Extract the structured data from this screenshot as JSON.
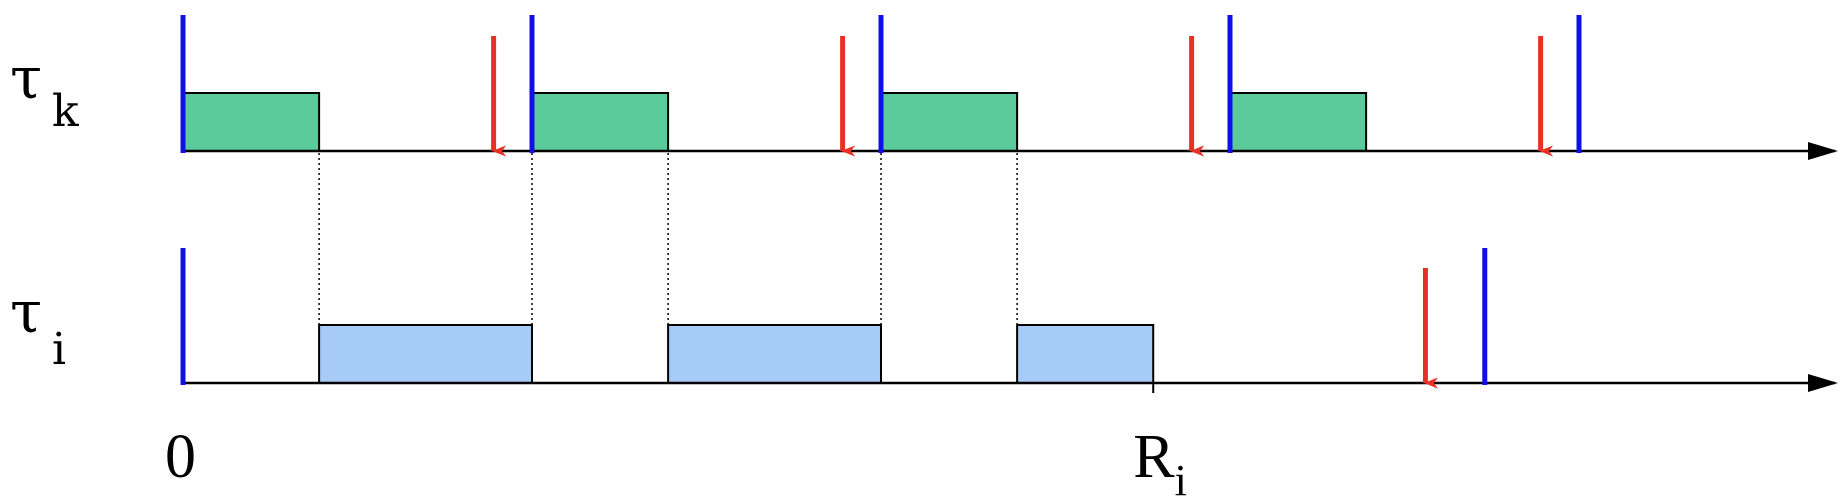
{
  "diagram": {
    "type": "schedule-timeline",
    "colors": {
      "axis": "#000000",
      "release_marker": "#1010e6",
      "deadline_arrow": "#e83025",
      "task_k_fill": "#5ccb9b",
      "task_i_fill": "#a6cbf7",
      "guide_line": "#000000"
    },
    "rows": [
      {
        "id": "tau-k",
        "symbol": "τ",
        "subscript": "k",
        "releases": [
          0,
          1,
          2,
          3,
          4
        ],
        "deadlines": [
          0.89,
          1.89,
          2.89,
          3.89
        ],
        "executions": [
          [
            0,
            0.39
          ],
          [
            1,
            1.39
          ],
          [
            2,
            2.39
          ],
          [
            3,
            3.39
          ]
        ]
      },
      {
        "id": "tau-i",
        "symbol": "τ",
        "subscript": "i",
        "releases": [
          0,
          3.73
        ],
        "deadlines": [
          3.56
        ],
        "executions": [
          [
            0.39,
            1
          ],
          [
            1.39,
            2
          ],
          [
            2.39,
            2.78
          ]
        ]
      }
    ],
    "x_labels": [
      {
        "main": "0",
        "sub": "",
        "x": 0
      },
      {
        "main": "R",
        "sub": "i",
        "x": 2.78
      }
    ]
  }
}
